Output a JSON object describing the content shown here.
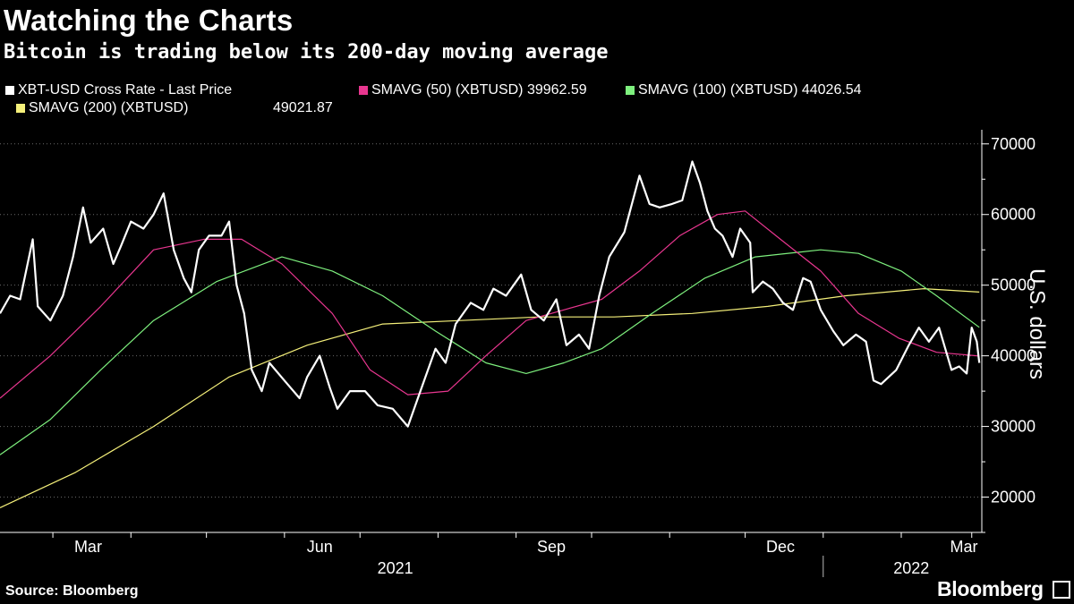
{
  "title": "Watching the Charts",
  "subtitle": "Bitcoin is trading below its 200-day moving average",
  "legend": [
    {
      "label": "XBT-USD Cross Rate - Last Price",
      "value": "",
      "color": "#ffffff"
    },
    {
      "label": "SMAVG (50) (XBTUSD) 39962.59",
      "value": "",
      "color": "#e8368f"
    },
    {
      "label": "SMAVG (100) (XBTUSD) 44026.54",
      "value": "",
      "color": "#7ef07e"
    },
    {
      "label": "SMAVG (200) (XBTUSD)",
      "value": "49021.87",
      "color": "#f5f07a"
    }
  ],
  "source": "Source: Bloomberg",
  "brand": "Bloomberg",
  "chart_data": {
    "type": "line",
    "ylabel": "U.S. dollars",
    "ylim": [
      15000,
      72000
    ],
    "y_ticks": [
      20000,
      30000,
      40000,
      50000,
      60000,
      70000
    ],
    "x_range": [
      "2021-02-08",
      "2022-03-05"
    ],
    "x_month_ticks": [
      {
        "label": "Mar",
        "date": "2021-03-01"
      },
      {
        "label": "Jun",
        "date": "2021-06-01"
      },
      {
        "label": "Sep",
        "date": "2021-09-01"
      },
      {
        "label": "Dec",
        "date": "2021-12-01"
      },
      {
        "label": "Mar",
        "date": "2022-03-01"
      }
    ],
    "x_year_labels": [
      {
        "label": "2021",
        "date": "2021-07-15"
      },
      {
        "label": "2022",
        "date": "2022-02-05"
      }
    ],
    "year_divider_date": "2022-01-01",
    "grid": "horizontal-dotted",
    "legend_position": "top",
    "series": [
      {
        "name": "XBT-USD Cross Rate - Last Price",
        "color": "#ffffff",
        "points": [
          [
            "2021-02-08",
            46000
          ],
          [
            "2021-02-12",
            48500
          ],
          [
            "2021-02-16",
            48000
          ],
          [
            "2021-02-21",
            56500
          ],
          [
            "2021-02-23",
            47000
          ],
          [
            "2021-02-28",
            45000
          ],
          [
            "2021-03-05",
            48500
          ],
          [
            "2021-03-09",
            54000
          ],
          [
            "2021-03-13",
            61000
          ],
          [
            "2021-03-16",
            56000
          ],
          [
            "2021-03-21",
            58000
          ],
          [
            "2021-03-25",
            53000
          ],
          [
            "2021-03-28",
            55500
          ],
          [
            "2021-04-01",
            59000
          ],
          [
            "2021-04-06",
            58000
          ],
          [
            "2021-04-10",
            60000
          ],
          [
            "2021-04-14",
            63000
          ],
          [
            "2021-04-18",
            55000
          ],
          [
            "2021-04-22",
            51000
          ],
          [
            "2021-04-25",
            49000
          ],
          [
            "2021-04-28",
            55000
          ],
          [
            "2021-05-02",
            57000
          ],
          [
            "2021-05-07",
            57000
          ],
          [
            "2021-05-10",
            59000
          ],
          [
            "2021-05-13",
            50000
          ],
          [
            "2021-05-16",
            46000
          ],
          [
            "2021-05-19",
            38000
          ],
          [
            "2021-05-23",
            35000
          ],
          [
            "2021-05-26",
            39000
          ],
          [
            "2021-06-01",
            36500
          ],
          [
            "2021-06-07",
            34000
          ],
          [
            "2021-06-10",
            37000
          ],
          [
            "2021-06-15",
            40000
          ],
          [
            "2021-06-19",
            35500
          ],
          [
            "2021-06-22",
            32500
          ],
          [
            "2021-06-27",
            35000
          ],
          [
            "2021-07-03",
            35000
          ],
          [
            "2021-07-08",
            33000
          ],
          [
            "2021-07-14",
            32500
          ],
          [
            "2021-07-20",
            30000
          ],
          [
            "2021-07-25",
            35000
          ],
          [
            "2021-07-31",
            41000
          ],
          [
            "2021-08-04",
            39000
          ],
          [
            "2021-08-08",
            44500
          ],
          [
            "2021-08-14",
            47500
          ],
          [
            "2021-08-19",
            46500
          ],
          [
            "2021-08-23",
            49500
          ],
          [
            "2021-08-28",
            48500
          ],
          [
            "2021-09-03",
            51500
          ],
          [
            "2021-09-07",
            46500
          ],
          [
            "2021-09-12",
            45000
          ],
          [
            "2021-09-17",
            48000
          ],
          [
            "2021-09-21",
            41500
          ],
          [
            "2021-09-26",
            43000
          ],
          [
            "2021-09-30",
            41000
          ],
          [
            "2021-10-04",
            48500
          ],
          [
            "2021-10-08",
            54000
          ],
          [
            "2021-10-14",
            57500
          ],
          [
            "2021-10-20",
            65500
          ],
          [
            "2021-10-24",
            61500
          ],
          [
            "2021-10-28",
            61000
          ],
          [
            "2021-11-02",
            61500
          ],
          [
            "2021-11-06",
            62000
          ],
          [
            "2021-11-10",
            67500
          ],
          [
            "2021-11-13",
            64500
          ],
          [
            "2021-11-16",
            60500
          ],
          [
            "2021-11-19",
            58000
          ],
          [
            "2021-11-22",
            57000
          ],
          [
            "2021-11-26",
            54000
          ],
          [
            "2021-11-29",
            58000
          ],
          [
            "2021-12-03",
            56000
          ],
          [
            "2021-12-04",
            49000
          ],
          [
            "2021-12-08",
            50500
          ],
          [
            "2021-12-12",
            49500
          ],
          [
            "2021-12-16",
            47500
          ],
          [
            "2021-12-20",
            46500
          ],
          [
            "2021-12-24",
            51000
          ],
          [
            "2021-12-27",
            50500
          ],
          [
            "2021-12-31",
            46500
          ],
          [
            "2022-01-05",
            43500
          ],
          [
            "2022-01-09",
            41500
          ],
          [
            "2022-01-14",
            43000
          ],
          [
            "2022-01-18",
            42000
          ],
          [
            "2022-01-21",
            36500
          ],
          [
            "2022-01-24",
            36000
          ],
          [
            "2022-01-30",
            38000
          ],
          [
            "2022-02-04",
            41500
          ],
          [
            "2022-02-08",
            44000
          ],
          [
            "2022-02-12",
            42000
          ],
          [
            "2022-02-16",
            44000
          ],
          [
            "2022-02-21",
            38000
          ],
          [
            "2022-02-24",
            38500
          ],
          [
            "2022-02-27",
            37500
          ],
          [
            "2022-03-01",
            44000
          ],
          [
            "2022-03-03",
            42000
          ],
          [
            "2022-03-04",
            39000
          ]
        ]
      },
      {
        "name": "SMAVG (50) (XBTUSD) 39962.59",
        "color": "#e8368f",
        "points": [
          [
            "2021-02-08",
            34000
          ],
          [
            "2021-02-28",
            40000
          ],
          [
            "2021-03-20",
            47000
          ],
          [
            "2021-04-10",
            55000
          ],
          [
            "2021-04-30",
            56500
          ],
          [
            "2021-05-15",
            56500
          ],
          [
            "2021-05-31",
            53000
          ],
          [
            "2021-06-20",
            46000
          ],
          [
            "2021-07-05",
            38000
          ],
          [
            "2021-07-20",
            34500
          ],
          [
            "2021-08-05",
            35000
          ],
          [
            "2021-08-20",
            40000
          ],
          [
            "2021-09-05",
            45000
          ],
          [
            "2021-09-20",
            46500
          ],
          [
            "2021-10-05",
            48000
          ],
          [
            "2021-10-20",
            52000
          ],
          [
            "2021-11-05",
            57000
          ],
          [
            "2021-11-20",
            60000
          ],
          [
            "2021-12-01",
            60500
          ],
          [
            "2021-12-15",
            56500
          ],
          [
            "2021-12-31",
            52000
          ],
          [
            "2022-01-15",
            46000
          ],
          [
            "2022-01-31",
            42500
          ],
          [
            "2022-02-15",
            40500
          ],
          [
            "2022-03-04",
            39962.59
          ]
        ]
      },
      {
        "name": "SMAVG (100) (XBTUSD) 44026.54",
        "color": "#7ef07e",
        "points": [
          [
            "2021-02-08",
            26000
          ],
          [
            "2021-02-28",
            31000
          ],
          [
            "2021-03-20",
            38000
          ],
          [
            "2021-04-10",
            45000
          ],
          [
            "2021-05-05",
            50500
          ],
          [
            "2021-05-31",
            54000
          ],
          [
            "2021-06-20",
            52000
          ],
          [
            "2021-07-10",
            48500
          ],
          [
            "2021-07-31",
            43500
          ],
          [
            "2021-08-20",
            39000
          ],
          [
            "2021-09-05",
            37500
          ],
          [
            "2021-09-20",
            39000
          ],
          [
            "2021-10-05",
            41000
          ],
          [
            "2021-10-25",
            46000
          ],
          [
            "2021-11-15",
            51000
          ],
          [
            "2021-12-05",
            54000
          ],
          [
            "2021-12-31",
            55000
          ],
          [
            "2022-01-15",
            54500
          ],
          [
            "2022-02-01",
            52000
          ],
          [
            "2022-02-15",
            48500
          ],
          [
            "2022-03-04",
            44026.54
          ]
        ]
      },
      {
        "name": "SMAVG (200) (XBTUSD)",
        "color": "#f5f07a",
        "points": [
          [
            "2021-02-08",
            18500
          ],
          [
            "2021-03-10",
            23500
          ],
          [
            "2021-04-10",
            30000
          ],
          [
            "2021-05-10",
            37000
          ],
          [
            "2021-06-10",
            41500
          ],
          [
            "2021-07-10",
            44500
          ],
          [
            "2021-08-10",
            45000
          ],
          [
            "2021-09-10",
            45500
          ],
          [
            "2021-10-10",
            45500
          ],
          [
            "2021-11-10",
            46000
          ],
          [
            "2021-12-10",
            47000
          ],
          [
            "2022-01-10",
            48500
          ],
          [
            "2022-02-10",
            49500
          ],
          [
            "2022-03-04",
            49021.87
          ]
        ]
      }
    ]
  }
}
